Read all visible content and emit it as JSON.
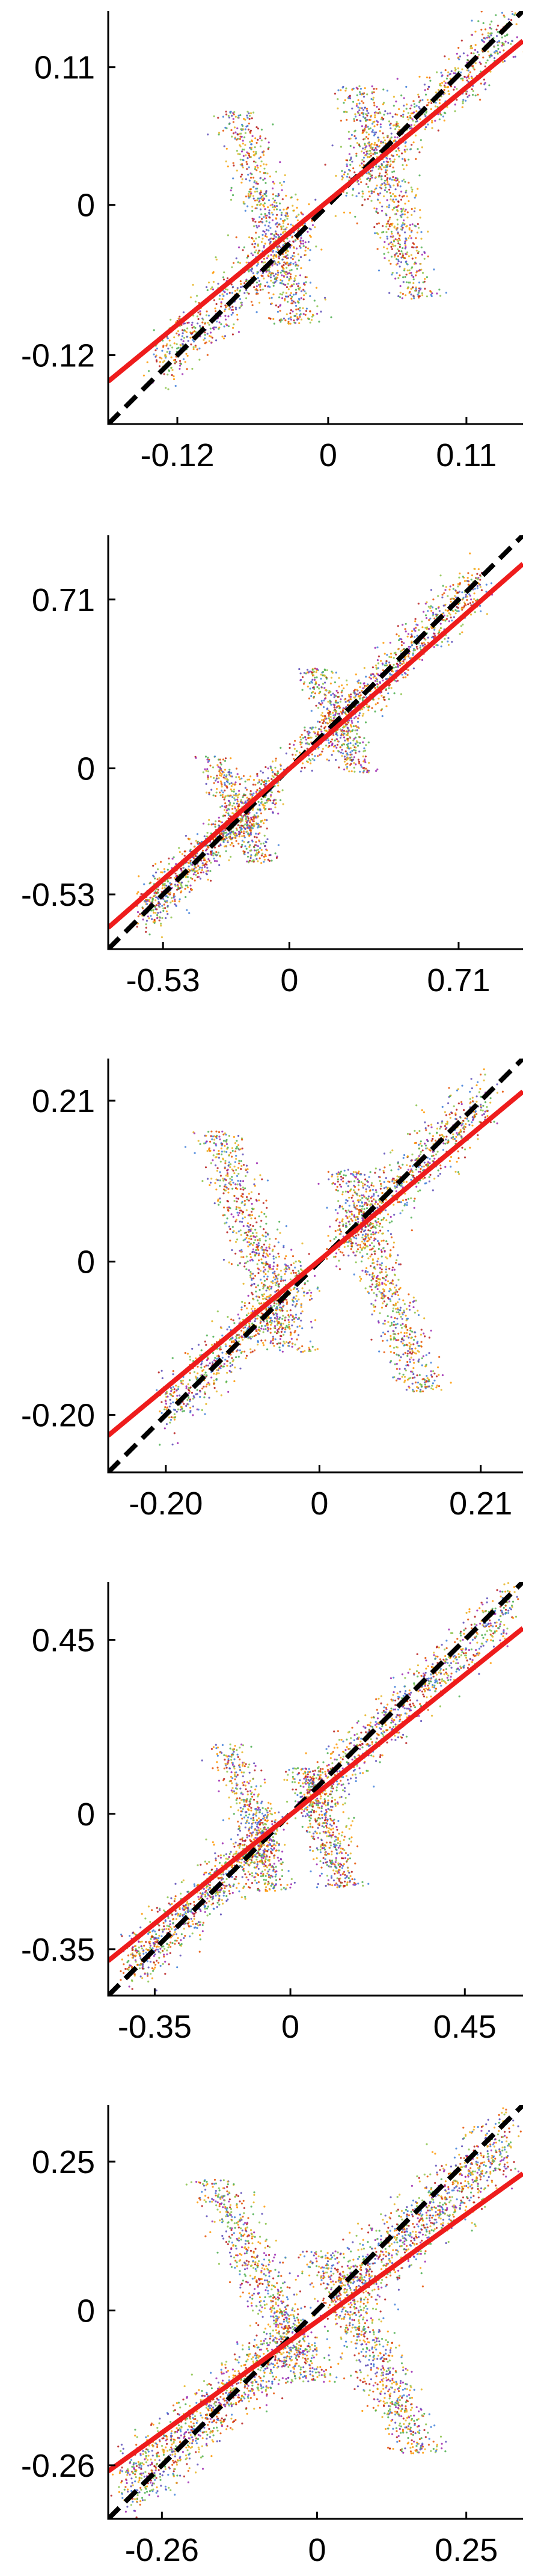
{
  "figure": {
    "background": "#ffffff"
  },
  "style": {
    "point_colors": [
      "#8bc34a",
      "#e6b422",
      "#5b4bb7",
      "#9c27b0",
      "#e65100",
      "#3f7fd9",
      "#4caf50",
      "#ff9800",
      "#b71c1c"
    ],
    "fit_color": "#ee1c1c",
    "identity_color": "#000000"
  },
  "chart_data": [
    {
      "type": "scatter",
      "xlim": [
        -0.175,
        0.155
      ],
      "ylim": [
        -0.175,
        0.155
      ],
      "xticks": [
        -0.12,
        0,
        0.11
      ],
      "xtick_labels": [
        "-0.12",
        "0",
        "0.11"
      ],
      "yticks": [
        -0.12,
        0,
        0.11
      ],
      "ytick_labels": [
        "-0.12",
        "0",
        "0.11"
      ],
      "fit_line": {
        "x": [
          -0.175,
          0.155
        ],
        "y": [
          -0.141,
          0.131
        ],
        "color": "#ee1c1c",
        "style": "solid"
      },
      "identity_line": {
        "x": [
          -0.175,
          0.155
        ],
        "y": [
          -0.175,
          0.155
        ],
        "color": "#000000",
        "style": "dashed"
      },
      "point_cloud": {
        "spread": 0.013,
        "along_line": [
          {
            "x_range": [
              -0.135,
              -0.015
            ],
            "n": 650
          },
          {
            "x_range": [
              0.015,
              0.145
            ],
            "n": 650
          }
        ],
        "wings": [
          {
            "x_center": -0.048,
            "y_range": [
              -0.095,
              0.075
            ],
            "slope": -0.28,
            "width": 0.021,
            "n": 650
          },
          {
            "x_center": 0.048,
            "y_range": [
              -0.075,
              0.095
            ],
            "slope": -0.28,
            "width": 0.021,
            "n": 650
          }
        ]
      },
      "grid": false,
      "legend": "none"
    },
    {
      "type": "scatter",
      "xlim": [
        -0.76,
        0.98
      ],
      "ylim": [
        -0.76,
        0.98
      ],
      "xticks": [
        -0.53,
        0,
        0.71
      ],
      "xtick_labels": [
        "-0.53",
        "0",
        "0.71"
      ],
      "yticks": [
        -0.53,
        0,
        0.71
      ],
      "ytick_labels": [
        "-0.53",
        "0",
        "0.71"
      ],
      "fit_line": {
        "x": [
          -0.76,
          0.98
        ],
        "y": [
          -0.67,
          0.86
        ],
        "color": "#ee1c1c",
        "style": "solid"
      },
      "identity_line": {
        "x": [
          -0.76,
          0.98
        ],
        "y": [
          -0.76,
          0.98
        ],
        "color": "#000000",
        "style": "dashed"
      },
      "point_cloud": {
        "spread": 0.05,
        "along_line": [
          {
            "x_range": [
              -0.62,
              -0.05
            ],
            "n": 900
          },
          {
            "x_range": [
              0.05,
              0.8
            ],
            "n": 900
          }
        ],
        "wings": [
          {
            "x_center": -0.22,
            "y_range": [
              -0.4,
              0.05
            ],
            "slope": -0.45,
            "width": 0.09,
            "n": 350
          },
          {
            "x_center": 0.2,
            "y_range": [
              -0.02,
              0.42
            ],
            "slope": -0.45,
            "width": 0.09,
            "n": 350
          }
        ]
      },
      "grid": false,
      "legend": "none"
    },
    {
      "type": "scatter",
      "xlim": [
        -0.275,
        0.265
      ],
      "ylim": [
        -0.275,
        0.265
      ],
      "xticks": [
        -0.2,
        0,
        0.21
      ],
      "xtick_labels": [
        "-0.20",
        "0",
        "0.21"
      ],
      "yticks": [
        -0.2,
        0,
        0.21
      ],
      "ytick_labels": [
        "-0.20",
        "0",
        "0.21"
      ],
      "fit_line": {
        "x": [
          -0.275,
          0.265
        ],
        "y": [
          -0.227,
          0.222
        ],
        "color": "#ee1c1c",
        "style": "solid"
      },
      "identity_line": {
        "x": [
          -0.275,
          0.265
        ],
        "y": [
          -0.275,
          0.265
        ],
        "color": "#000000",
        "style": "dashed"
      },
      "point_cloud": {
        "spread": 0.02,
        "along_line": [
          {
            "x_range": [
              -0.2,
              -0.02
            ],
            "n": 700
          },
          {
            "x_range": [
              0.02,
              0.22
            ],
            "n": 700
          }
        ],
        "wings": [
          {
            "x_center": -0.085,
            "y_range": [
              -0.12,
              0.17
            ],
            "slope": -0.35,
            "width": 0.035,
            "n": 700
          },
          {
            "x_center": 0.085,
            "y_range": [
              -0.17,
              0.12
            ],
            "slope": -0.35,
            "width": 0.035,
            "n": 700
          }
        ]
      },
      "grid": false,
      "legend": "none"
    },
    {
      "type": "scatter",
      "xlim": [
        -0.47,
        0.6
      ],
      "ylim": [
        -0.47,
        0.6
      ],
      "xticks": [
        -0.35,
        0,
        0.45
      ],
      "xtick_labels": [
        "-0.35",
        "0",
        "0.45"
      ],
      "yticks": [
        -0.35,
        0,
        0.45
      ],
      "ytick_labels": [
        "-0.35",
        "0",
        "0.45"
      ],
      "fit_line": {
        "x": [
          -0.47,
          0.6
        ],
        "y": [
          -0.38,
          0.48
        ],
        "color": "#ee1c1c",
        "style": "solid"
      },
      "identity_line": {
        "x": [
          -0.47,
          0.6
        ],
        "y": [
          -0.47,
          0.6
        ],
        "color": "#000000",
        "style": "dashed"
      },
      "point_cloud": {
        "spread": 0.035,
        "along_line": [
          {
            "x_range": [
              -0.42,
              -0.04
            ],
            "n": 900
          },
          {
            "x_range": [
              0.04,
              0.57
            ],
            "n": 900
          }
        ],
        "wings": [
          {
            "x_center": -0.1,
            "y_range": [
              -0.2,
              0.18
            ],
            "slope": -0.3,
            "width": 0.06,
            "n": 500
          },
          {
            "x_center": 0.09,
            "y_range": [
              -0.19,
              0.12
            ],
            "slope": -0.3,
            "width": 0.06,
            "n": 500
          }
        ]
      },
      "grid": false,
      "legend": "none"
    },
    {
      "type": "scatter",
      "xlim": [
        -0.35,
        0.345
      ],
      "ylim": [
        -0.35,
        0.345
      ],
      "xticks": [
        -0.26,
        0,
        0.25
      ],
      "xtick_labels": [
        "-0.26",
        "0",
        "0.25"
      ],
      "yticks": [
        -0.26,
        0,
        0.25
      ],
      "ytick_labels": [
        "-0.26",
        "0",
        "0.25"
      ],
      "fit_line": {
        "x": [
          -0.35,
          0.345
        ],
        "y": [
          -0.27,
          0.23
        ],
        "color": "#ee1c1c",
        "style": "solid"
      },
      "identity_line": {
        "x": [
          -0.35,
          0.345
        ],
        "y": [
          -0.35,
          0.345
        ],
        "color": "#000000",
        "style": "dashed"
      },
      "point_cloud": {
        "spread": 0.03,
        "along_line": [
          {
            "x_range": [
              -0.32,
              -0.03
            ],
            "n": 1100
          },
          {
            "x_range": [
              0.03,
              0.32
            ],
            "n": 1100
          }
        ],
        "wings": [
          {
            "x_center": -0.09,
            "y_range": [
              -0.12,
              0.22
            ],
            "slope": -0.5,
            "width": 0.05,
            "n": 700
          },
          {
            "x_center": 0.09,
            "y_range": [
              -0.24,
              0.1
            ],
            "slope": -0.5,
            "width": 0.05,
            "n": 700
          }
        ]
      },
      "grid": false,
      "legend": "none"
    }
  ]
}
